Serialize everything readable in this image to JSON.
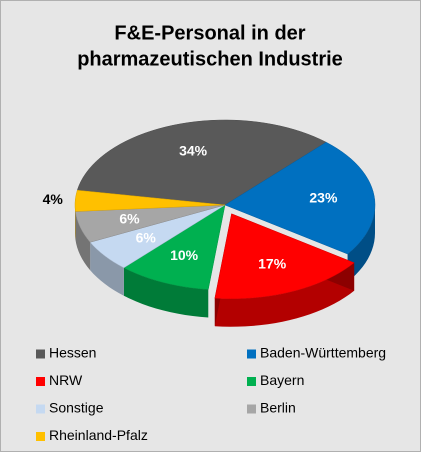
{
  "chart_data": {
    "type": "pie3d",
    "title": "F&E-Personal in der pharmazeutischen Industrie",
    "title_lines": [
      "F&E-Personal in der",
      "pharmazeutischen Industrie"
    ],
    "categories": [
      "Hessen",
      "Baden-Württemberg",
      "NRW",
      "Bayern",
      "Sonstige",
      "Berlin",
      "Rheinland-Pfalz"
    ],
    "values": [
      34,
      23,
      17,
      10,
      6,
      6,
      4
    ],
    "value_labels": [
      "34%",
      "23%",
      "17%",
      "10%",
      "6%",
      "6%",
      "4%"
    ],
    "colors": [
      "#595959",
      "#0070c0",
      "#ff0000",
      "#00b050",
      "#c5d9f1",
      "#a6a6a6",
      "#ffc000"
    ],
    "exploded": [
      false,
      false,
      true,
      false,
      false,
      false,
      false
    ],
    "legend": "bottom"
  }
}
